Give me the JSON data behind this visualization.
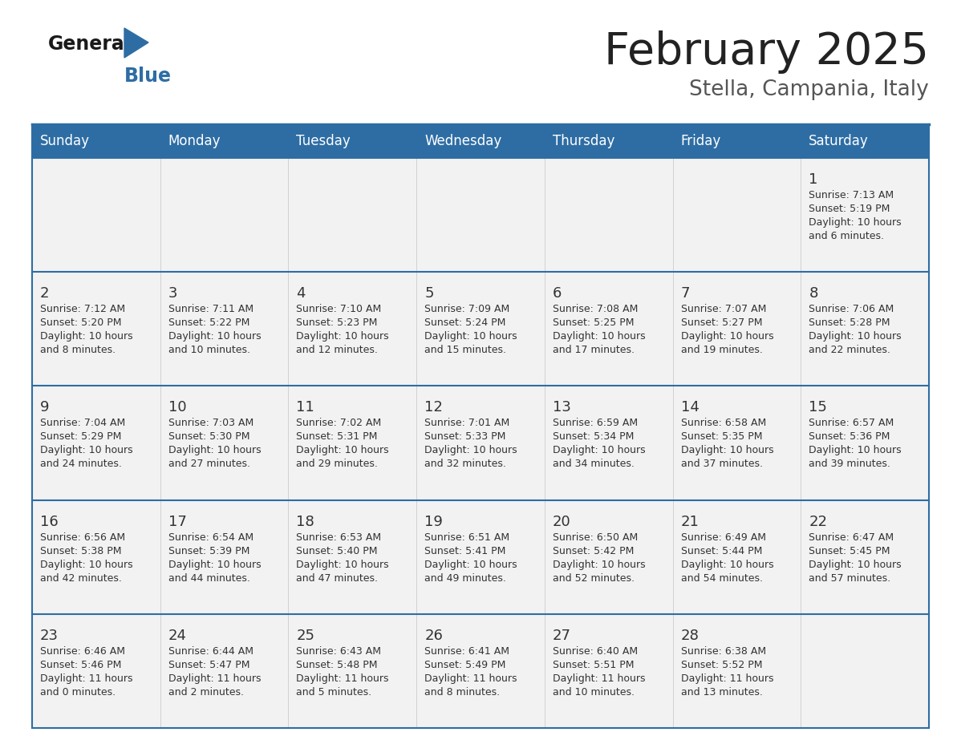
{
  "title": "February 2025",
  "subtitle": "Stella, Campania, Italy",
  "days_of_week": [
    "Sunday",
    "Monday",
    "Tuesday",
    "Wednesday",
    "Thursday",
    "Friday",
    "Saturday"
  ],
  "header_bg": "#2E6DA4",
  "header_text": "#FFFFFF",
  "cell_bg": "#F2F2F2",
  "border_color": "#2E6DA4",
  "day_number_color": "#333333",
  "cell_text_color": "#333333",
  "title_color": "#222222",
  "subtitle_color": "#555555",
  "logo_general_color": "#1a1a1a",
  "logo_blue_color": "#2E6DA4",
  "calendar_data": [
    [
      null,
      null,
      null,
      null,
      null,
      null,
      {
        "day": 1,
        "sunrise": "7:13 AM",
        "sunset": "5:19 PM",
        "daylight": "10 hours\nand 6 minutes."
      }
    ],
    [
      {
        "day": 2,
        "sunrise": "7:12 AM",
        "sunset": "5:20 PM",
        "daylight": "10 hours\nand 8 minutes."
      },
      {
        "day": 3,
        "sunrise": "7:11 AM",
        "sunset": "5:22 PM",
        "daylight": "10 hours\nand 10 minutes."
      },
      {
        "day": 4,
        "sunrise": "7:10 AM",
        "sunset": "5:23 PM",
        "daylight": "10 hours\nand 12 minutes."
      },
      {
        "day": 5,
        "sunrise": "7:09 AM",
        "sunset": "5:24 PM",
        "daylight": "10 hours\nand 15 minutes."
      },
      {
        "day": 6,
        "sunrise": "7:08 AM",
        "sunset": "5:25 PM",
        "daylight": "10 hours\nand 17 minutes."
      },
      {
        "day": 7,
        "sunrise": "7:07 AM",
        "sunset": "5:27 PM",
        "daylight": "10 hours\nand 19 minutes."
      },
      {
        "day": 8,
        "sunrise": "7:06 AM",
        "sunset": "5:28 PM",
        "daylight": "10 hours\nand 22 minutes."
      }
    ],
    [
      {
        "day": 9,
        "sunrise": "7:04 AM",
        "sunset": "5:29 PM",
        "daylight": "10 hours\nand 24 minutes."
      },
      {
        "day": 10,
        "sunrise": "7:03 AM",
        "sunset": "5:30 PM",
        "daylight": "10 hours\nand 27 minutes."
      },
      {
        "day": 11,
        "sunrise": "7:02 AM",
        "sunset": "5:31 PM",
        "daylight": "10 hours\nand 29 minutes."
      },
      {
        "day": 12,
        "sunrise": "7:01 AM",
        "sunset": "5:33 PM",
        "daylight": "10 hours\nand 32 minutes."
      },
      {
        "day": 13,
        "sunrise": "6:59 AM",
        "sunset": "5:34 PM",
        "daylight": "10 hours\nand 34 minutes."
      },
      {
        "day": 14,
        "sunrise": "6:58 AM",
        "sunset": "5:35 PM",
        "daylight": "10 hours\nand 37 minutes."
      },
      {
        "day": 15,
        "sunrise": "6:57 AM",
        "sunset": "5:36 PM",
        "daylight": "10 hours\nand 39 minutes."
      }
    ],
    [
      {
        "day": 16,
        "sunrise": "6:56 AM",
        "sunset": "5:38 PM",
        "daylight": "10 hours\nand 42 minutes."
      },
      {
        "day": 17,
        "sunrise": "6:54 AM",
        "sunset": "5:39 PM",
        "daylight": "10 hours\nand 44 minutes."
      },
      {
        "day": 18,
        "sunrise": "6:53 AM",
        "sunset": "5:40 PM",
        "daylight": "10 hours\nand 47 minutes."
      },
      {
        "day": 19,
        "sunrise": "6:51 AM",
        "sunset": "5:41 PM",
        "daylight": "10 hours\nand 49 minutes."
      },
      {
        "day": 20,
        "sunrise": "6:50 AM",
        "sunset": "5:42 PM",
        "daylight": "10 hours\nand 52 minutes."
      },
      {
        "day": 21,
        "sunrise": "6:49 AM",
        "sunset": "5:44 PM",
        "daylight": "10 hours\nand 54 minutes."
      },
      {
        "day": 22,
        "sunrise": "6:47 AM",
        "sunset": "5:45 PM",
        "daylight": "10 hours\nand 57 minutes."
      }
    ],
    [
      {
        "day": 23,
        "sunrise": "6:46 AM",
        "sunset": "5:46 PM",
        "daylight": "11 hours\nand 0 minutes."
      },
      {
        "day": 24,
        "sunrise": "6:44 AM",
        "sunset": "5:47 PM",
        "daylight": "11 hours\nand 2 minutes."
      },
      {
        "day": 25,
        "sunrise": "6:43 AM",
        "sunset": "5:48 PM",
        "daylight": "11 hours\nand 5 minutes."
      },
      {
        "day": 26,
        "sunrise": "6:41 AM",
        "sunset": "5:49 PM",
        "daylight": "11 hours\nand 8 minutes."
      },
      {
        "day": 27,
        "sunrise": "6:40 AM",
        "sunset": "5:51 PM",
        "daylight": "11 hours\nand 10 minutes."
      },
      {
        "day": 28,
        "sunrise": "6:38 AM",
        "sunset": "5:52 PM",
        "daylight": "11 hours\nand 13 minutes."
      },
      null
    ]
  ]
}
